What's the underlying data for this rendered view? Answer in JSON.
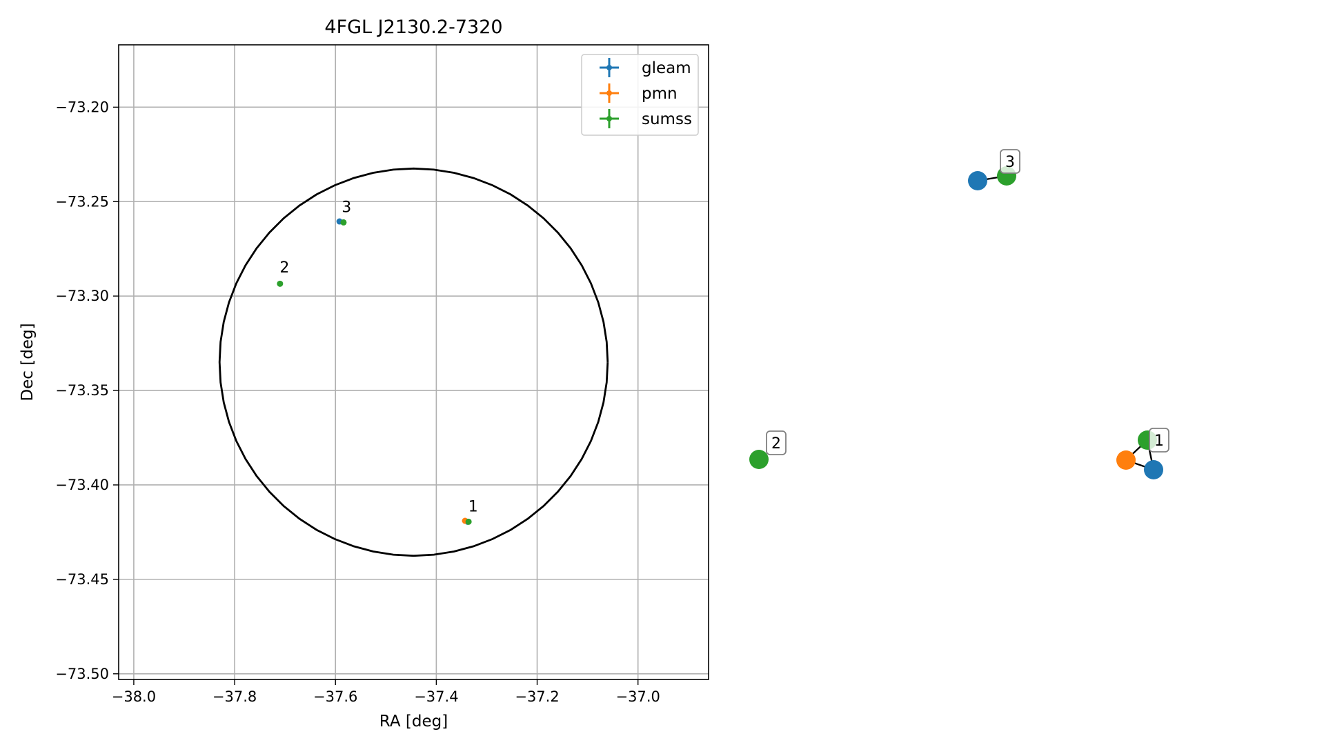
{
  "chart_data": [
    {
      "type": "scatter",
      "title": "4FGL J2130.2-7320",
      "xlabel": "RA [deg]",
      "ylabel": "Dec [deg]",
      "xlim": [
        -38.03,
        -36.86
      ],
      "ylim": [
        -73.503,
        -73.167
      ],
      "xticks": [
        -38.0,
        -37.8,
        -37.6,
        -37.4,
        -37.2,
        -37.0
      ],
      "xtick_labels": [
        "−38.0",
        "−37.8",
        "−37.6",
        "−37.4",
        "−37.2",
        "−37.0"
      ],
      "yticks": [
        -73.2,
        -73.25,
        -73.3,
        -73.35,
        -73.4,
        -73.45,
        -73.5
      ],
      "ytick_labels": [
        "−73.20",
        "−73.25",
        "−73.30",
        "−73.35",
        "−73.40",
        "−73.45",
        "−73.50"
      ],
      "grid": true,
      "legend_position": "top-right",
      "circle": {
        "center": [
          -37.445,
          -73.335
        ],
        "ra_radius": 0.385,
        "dec_radius": 0.1025
      },
      "series": [
        {
          "name": "gleam",
          "color": "#1f77b4",
          "points": [
            {
              "x": -37.338,
              "y": -73.4195
            },
            {
              "x": -37.592,
              "y": -73.2605
            }
          ]
        },
        {
          "name": "pmn",
          "color": "#ff7f0e",
          "points": [
            {
              "x": -37.343,
              "y": -73.419
            }
          ]
        },
        {
          "name": "sumss",
          "color": "#2ca02c",
          "points": [
            {
              "x": -37.336,
              "y": -73.4195
            },
            {
              "x": -37.71,
              "y": -73.2935
            },
            {
              "x": -37.584,
              "y": -73.261
            }
          ]
        }
      ],
      "annotations": [
        {
          "text": "1",
          "x": -37.327,
          "y": -73.414
        },
        {
          "text": "2",
          "x": -37.701,
          "y": -73.2875
        },
        {
          "text": "3",
          "x": -37.578,
          "y": -73.2555
        }
      ]
    },
    {
      "type": "network",
      "nodes": [
        {
          "id": "g1",
          "series": "gleam",
          "color": "#1f77b4"
        },
        {
          "id": "p1",
          "series": "pmn",
          "color": "#ff7f0e"
        },
        {
          "id": "s1",
          "series": "sumss",
          "color": "#2ca02c"
        },
        {
          "id": "s2",
          "series": "sumss",
          "color": "#2ca02c"
        },
        {
          "id": "g3",
          "series": "gleam",
          "color": "#1f77b4"
        },
        {
          "id": "s3",
          "series": "sumss",
          "color": "#2ca02c"
        }
      ],
      "edges": [
        [
          "g1",
          "s1"
        ],
        [
          "p1",
          "s1"
        ],
        [
          "p1",
          "g1"
        ],
        [
          "g3",
          "s3"
        ]
      ],
      "labels": [
        {
          "text": "1",
          "node": "s1"
        },
        {
          "text": "2",
          "node": "s2"
        },
        {
          "text": "3",
          "node": "s3"
        }
      ]
    }
  ]
}
